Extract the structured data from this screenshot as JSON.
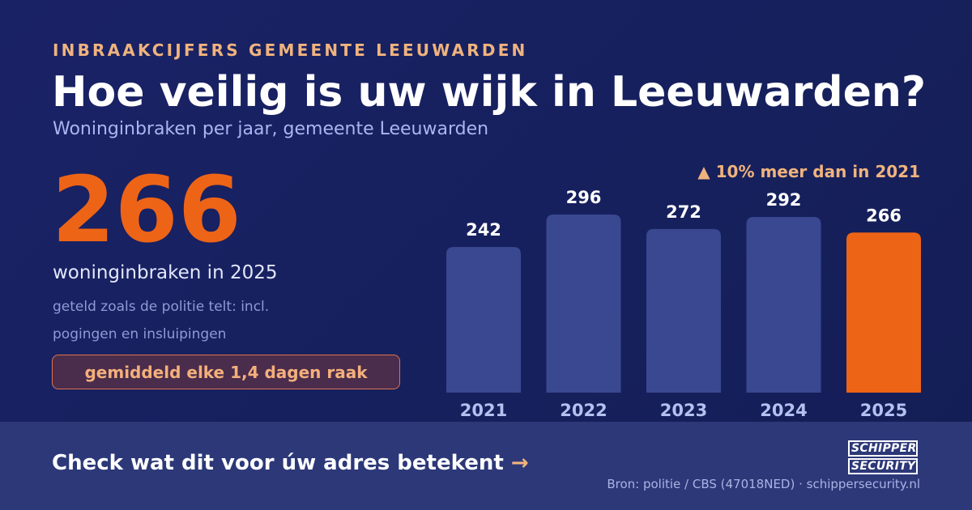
{
  "header": {
    "kicker": "INBRAAKCIJFERS GEMEENTE LEEUWARDEN",
    "title": "Hoe veilig is uw wijk in Leeuwarden?",
    "subtitle": "Woninginbraken per jaar, gemeente Leeuwarden"
  },
  "highlight": {
    "value": "266",
    "label": "woninginbraken in 2025",
    "note": "geteld zoals de politie telt: incl. pogingen en insluipingen",
    "frequency": "gemiddeld elke 1,4 dagen raak"
  },
  "change_label": "▲ 10% meer dan in 2021",
  "chart_data": {
    "type": "bar",
    "categories": [
      "2021",
      "2022",
      "2023",
      "2024",
      "2025"
    ],
    "values": [
      242,
      296,
      272,
      292,
      266
    ],
    "title": "",
    "xlabel": "",
    "ylabel": "",
    "highlight_category": "2025",
    "colors": {
      "default": "#394890",
      "highlight": "#ee6416"
    },
    "grid": false
  },
  "footer": {
    "cta": "Check wat dit voor úw adres betekent",
    "cta_arrow": "→",
    "source": "Bron: politie / CBS (47018NED) · schippersecurity.nl",
    "logo_line1": "SCHIPPER",
    "logo_line2": "SECURITY"
  }
}
